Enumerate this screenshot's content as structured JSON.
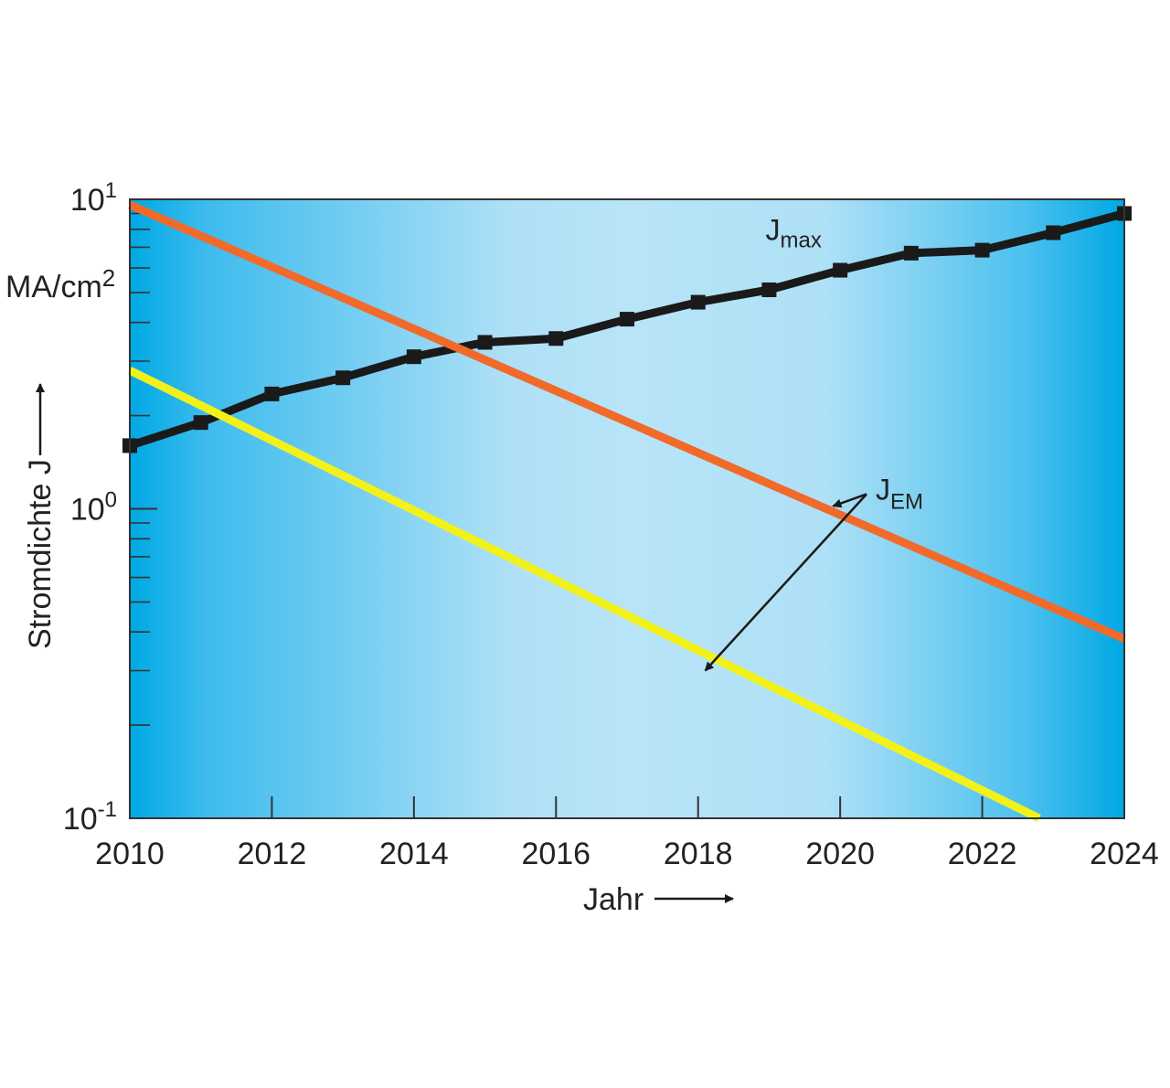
{
  "chart_data": {
    "type": "line",
    "xlabel": "Jahr",
    "ylabel": "Stromdichte J",
    "yunit": "MA/cm",
    "yunit_exp": "2",
    "yscale": "log",
    "xlim": [
      2010,
      2024
    ],
    "ylim": [
      0.1,
      10
    ],
    "xticks": [
      "2010",
      "2012",
      "2014",
      "2016",
      "2018",
      "2020",
      "2022",
      "2024"
    ],
    "yticks": [
      {
        "value": 10,
        "base": "10",
        "exp": "1"
      },
      {
        "value": 1,
        "base": "10",
        "exp": "0"
      },
      {
        "value": 0.1,
        "base": "10",
        "exp": "-1"
      }
    ],
    "series": [
      {
        "name": "J_max",
        "label_main": "J",
        "label_sub": "max",
        "color": "#1a1a1a",
        "marker": "square",
        "x": [
          2010,
          2011,
          2012,
          2013,
          2014,
          2015,
          2016,
          2017,
          2018,
          2019,
          2020,
          2021,
          2022,
          2023,
          2024
        ],
        "y": [
          1.6,
          1.9,
          2.35,
          2.65,
          3.1,
          3.45,
          3.55,
          4.1,
          4.65,
          5.1,
          5.9,
          6.7,
          6.85,
          7.8,
          9.0
        ]
      },
      {
        "name": "J_EM (1)",
        "color": "#f26a2a",
        "x": [
          2010,
          2024
        ],
        "y": [
          9.6,
          0.38
        ]
      },
      {
        "name": "J_EM (2)",
        "color": "#f2f21a",
        "x": [
          2010,
          2022.8
        ],
        "y": [
          2.8,
          0.1
        ]
      }
    ],
    "annotations": [
      {
        "label_main": "J",
        "label_sub": "EM",
        "x": 2020.5,
        "y": 1.1,
        "points_to": [
          "J_EM (1)",
          "J_EM (2)"
        ]
      }
    ],
    "background": {
      "edge": "#00a8e4",
      "center": "#b8e4f7"
    },
    "grid": false
  }
}
